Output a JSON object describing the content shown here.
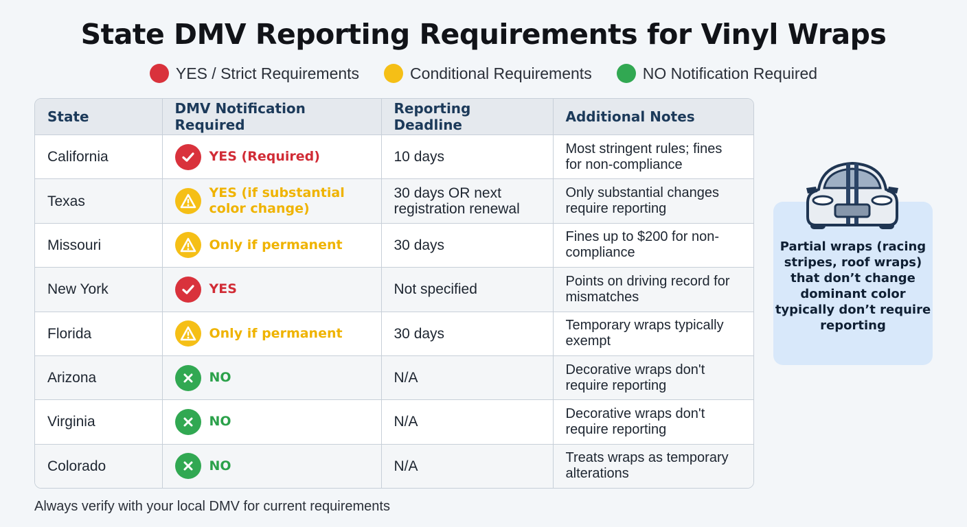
{
  "title": "State DMV Reporting Requirements for Vinyl Wraps",
  "legend": [
    {
      "label": "YES / Strict Requirements",
      "color": "#d9323c"
    },
    {
      "label": "Conditional Requirements",
      "color": "#f5bf16"
    },
    {
      "label": "NO Notification Required",
      "color": "#31a852"
    }
  ],
  "table": {
    "headers": {
      "state": "State",
      "notification": "DMV Notification Required",
      "deadline": "Reporting Deadline",
      "notes": "Additional Notes"
    },
    "rows": [
      {
        "state": "California",
        "status": "red",
        "status_icon": "check-icon",
        "notification": "YES (Required)",
        "deadline": "10 days",
        "notes": "Most stringent rules; fines for non-compliance"
      },
      {
        "state": "Texas",
        "status": "yellow",
        "status_icon": "warning-icon",
        "notification": "YES (if substantial color change)",
        "deadline": "30 days OR next registration renewal",
        "notes": "Only substantial changes require reporting"
      },
      {
        "state": "Missouri",
        "status": "yellow",
        "status_icon": "warning-icon",
        "notification": "Only if permanent",
        "deadline": "30 days",
        "notes": "Fines up to $200 for non-compliance"
      },
      {
        "state": "New York",
        "status": "red",
        "status_icon": "check-icon",
        "notification": "YES",
        "deadline": "Not specified",
        "notes": "Points on driving record for mismatches"
      },
      {
        "state": "Florida",
        "status": "yellow",
        "status_icon": "warning-icon",
        "notification": "Only if permanent",
        "deadline": "30 days",
        "notes": "Temporary wraps typically exempt"
      },
      {
        "state": "Arizona",
        "status": "green",
        "status_icon": "x-icon",
        "notification": "NO",
        "deadline": "N/A",
        "notes": "Decorative wraps don't require reporting"
      },
      {
        "state": "Virginia",
        "status": "green",
        "status_icon": "x-icon",
        "notification": "NO",
        "deadline": "N/A",
        "notes": "Decorative wraps don't require reporting"
      },
      {
        "state": "Colorado",
        "status": "green",
        "status_icon": "x-icon",
        "notification": "NO",
        "deadline": "N/A",
        "notes": "Treats wraps as temporary alterations"
      }
    ]
  },
  "side_note": {
    "icon": "car-icon",
    "text": "Partial wraps (racing stripes, roof wraps) that don’t change dominant color typically don’t require reporting"
  },
  "footnote": "Always verify with your local DMV for current requirements"
}
